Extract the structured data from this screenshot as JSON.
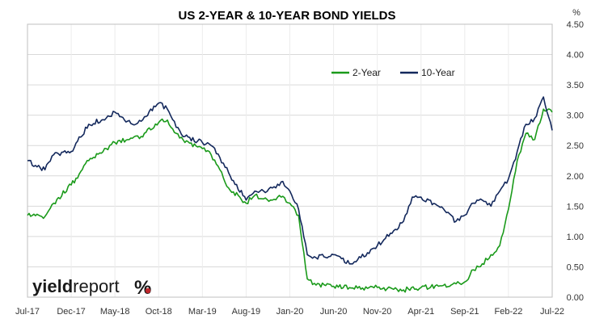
{
  "chart_data": {
    "type": "line",
    "title": "US 2-YEAR & 10-YEAR BOND YIELDS",
    "y_unit": "%",
    "ylim": [
      0,
      4.5
    ],
    "y_ticks": [
      "0.00",
      "0.50",
      "1.00",
      "1.50",
      "2.00",
      "2.50",
      "3.00",
      "3.50",
      "4.00",
      "4.50"
    ],
    "y_axis_position": "right",
    "x_tick_labels": [
      "Jul-17",
      "Dec-17",
      "May-18",
      "Oct-18",
      "Mar-19",
      "Aug-19",
      "Jan-20",
      "Jun-20",
      "Nov-20",
      "Apr-21",
      "Sep-21",
      "Feb-22",
      "Jul-22"
    ],
    "grid": "horizontal",
    "legend_placement": "top-center",
    "series": [
      {
        "name": "2-Year",
        "color": "#1a9a1a",
        "x": [
          "Jul-17",
          "Sep-17",
          "Oct-17",
          "Dec-17",
          "Feb-18",
          "Apr-18",
          "May-18",
          "Jul-18",
          "Aug-18",
          "Oct-18",
          "Nov-18",
          "Dec-18",
          "Jan-19",
          "Mar-19",
          "Apr-19",
          "May-19",
          "Jun-19",
          "Aug-19",
          "Sep-19",
          "Oct-19",
          "Nov-19",
          "Dec-19",
          "Jan-20",
          "Feb-20",
          "Mar-20",
          "Apr-20",
          "Jun-20",
          "Aug-20",
          "Nov-20",
          "Feb-21",
          "Apr-21",
          "Jun-21",
          "Aug-21",
          "Sep-21",
          "Oct-21",
          "Nov-21",
          "Dec-21",
          "Jan-22",
          "Feb-22",
          "Mar-22",
          "Apr-22",
          "May-22",
          "Jun-22",
          "Jul-22"
        ],
        "values": [
          1.35,
          1.33,
          1.55,
          1.85,
          2.25,
          2.45,
          2.55,
          2.62,
          2.65,
          2.88,
          2.92,
          2.7,
          2.55,
          2.45,
          2.35,
          2.1,
          1.8,
          1.55,
          1.68,
          1.62,
          1.6,
          1.65,
          1.55,
          1.35,
          0.3,
          0.2,
          0.18,
          0.15,
          0.16,
          0.12,
          0.16,
          0.18,
          0.22,
          0.25,
          0.45,
          0.55,
          0.7,
          0.85,
          1.45,
          2.25,
          2.7,
          2.6,
          3.1,
          3.05
        ]
      },
      {
        "name": "10-Year",
        "color": "#13285c",
        "x": [
          "Jul-17",
          "Sep-17",
          "Oct-17",
          "Dec-17",
          "Feb-18",
          "Apr-18",
          "May-18",
          "Jul-18",
          "Aug-18",
          "Oct-18",
          "Nov-18",
          "Dec-18",
          "Jan-19",
          "Mar-19",
          "Apr-19",
          "May-19",
          "Jun-19",
          "Aug-19",
          "Sep-19",
          "Oct-19",
          "Nov-19",
          "Dec-19",
          "Jan-20",
          "Feb-20",
          "Mar-20",
          "Apr-20",
          "Jun-20",
          "Aug-20",
          "Nov-20",
          "Feb-21",
          "Mar-21",
          "Apr-21",
          "Jun-21",
          "Aug-21",
          "Sep-21",
          "Oct-21",
          "Nov-21",
          "Dec-21",
          "Jan-22",
          "Feb-22",
          "Mar-22",
          "Apr-22",
          "May-22",
          "Jun-22",
          "Jul-22"
        ],
        "values": [
          2.25,
          2.1,
          2.35,
          2.4,
          2.85,
          2.95,
          3.05,
          2.85,
          2.9,
          3.2,
          3.1,
          2.8,
          2.65,
          2.55,
          2.5,
          2.3,
          2.05,
          1.6,
          1.75,
          1.75,
          1.8,
          1.9,
          1.75,
          1.45,
          0.7,
          0.65,
          0.7,
          0.55,
          0.85,
          1.25,
          1.65,
          1.65,
          1.5,
          1.25,
          1.35,
          1.55,
          1.6,
          1.5,
          1.75,
          1.95,
          2.4,
          2.85,
          2.95,
          3.3,
          2.75
        ]
      }
    ]
  },
  "branding": {
    "logo_word1": "yield",
    "logo_word2": "report",
    "logo_symbol": "%"
  }
}
